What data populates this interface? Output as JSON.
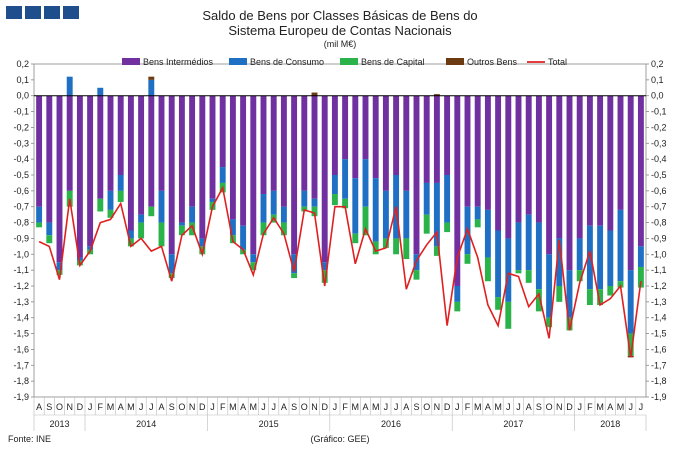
{
  "chart_data": {
    "type": "bar",
    "stacked": true,
    "title": "Saldo de Bens por Classes Básicas de Bens do",
    "subtitle": "Sistema Europeu de Contas Nacionais",
    "unit": "(mil M€)",
    "source": "Fonte: INE",
    "credit": "(Gráfico: GEE)",
    "ylim": [
      -1.9,
      0.2
    ],
    "yticks": [
      "0,2",
      "0,1",
      "0,0",
      "-0,1",
      "-0,2",
      "-0,3",
      "-0,4",
      "-0,5",
      "-0,6",
      "-0,7",
      "-0,8",
      "-0,9",
      "-1,0",
      "-1,1",
      "-1,2",
      "-1,3",
      "-1,4",
      "-1,5",
      "-1,6",
      "-1,7",
      "-1,8",
      "-1,9"
    ],
    "categories": [
      "A",
      "S",
      "O",
      "N",
      "D",
      "J",
      "F",
      "M",
      "A",
      "M",
      "J",
      "J",
      "A",
      "S",
      "O",
      "N",
      "D",
      "J",
      "F",
      "M",
      "A",
      "M",
      "J",
      "J",
      "A",
      "S",
      "O",
      "N",
      "D",
      "J",
      "F",
      "M",
      "A",
      "M",
      "J",
      "J",
      "A",
      "S",
      "O",
      "N",
      "D",
      "J",
      "F",
      "M",
      "A",
      "M",
      "J",
      "J",
      "A",
      "S",
      "O",
      "N",
      "D",
      "J",
      "F",
      "M",
      "A",
      "M",
      "J",
      "J"
    ],
    "years": [
      {
        "label": "2013",
        "start": 0,
        "end": 4
      },
      {
        "label": "2014",
        "start": 5,
        "end": 16
      },
      {
        "label": "2015",
        "start": 17,
        "end": 28
      },
      {
        "label": "2016",
        "start": 29,
        "end": 40
      },
      {
        "label": "2017",
        "start": 41,
        "end": 52
      },
      {
        "label": "2018",
        "start": 53,
        "end": 59
      }
    ],
    "legend_position": "top",
    "series": [
      {
        "name": "Bens Intermédios",
        "color": "#7030a0",
        "values": [
          -0.7,
          -0.8,
          -1.05,
          -0.6,
          -1.02,
          -0.95,
          -0.65,
          -0.6,
          -0.5,
          -0.85,
          -0.75,
          -0.7,
          -0.6,
          -1.0,
          -0.8,
          -0.7,
          -0.9,
          -0.65,
          -0.45,
          -0.78,
          -0.82,
          -1.0,
          -0.62,
          -0.6,
          -0.7,
          -1.0,
          -0.6,
          -0.65,
          -1.05,
          -0.5,
          -0.4,
          -0.52,
          -0.4,
          -0.52,
          -0.6,
          -0.5,
          -0.6,
          -1.0,
          -0.55,
          -0.55,
          -0.5,
          -1.2,
          -0.7,
          -0.7,
          -0.72,
          -0.85,
          -0.9,
          -0.8,
          -0.75,
          -0.8,
          -1.0,
          -0.9,
          -1.1,
          -0.9,
          -0.82,
          -0.82,
          -0.85,
          -0.72,
          -1.1,
          -0.95
        ]
      },
      {
        "name": "Bens de Consumo",
        "color": "#1f6fc5",
        "values": [
          -0.1,
          -0.08,
          -0.05,
          0.12,
          -0.02,
          -0.02,
          0.05,
          -0.12,
          -0.1,
          -0.05,
          -0.05,
          0.1,
          -0.2,
          -0.12,
          -0.02,
          -0.1,
          -0.05,
          -0.02,
          -0.1,
          -0.1,
          -0.15,
          -0.05,
          -0.18,
          -0.15,
          -0.1,
          -0.12,
          -0.1,
          -0.05,
          -0.05,
          -0.12,
          -0.25,
          -0.35,
          -0.3,
          -0.4,
          -0.3,
          -0.4,
          -0.3,
          -0.1,
          -0.2,
          -0.4,
          -0.3,
          -0.1,
          -0.3,
          -0.08,
          -0.3,
          -0.42,
          -0.4,
          -0.3,
          -0.35,
          -0.42,
          -0.4,
          -0.3,
          -0.3,
          -0.2,
          -0.4,
          -0.4,
          -0.35,
          -0.45,
          -0.4,
          -0.13
        ]
      },
      {
        "name": "Bens de Capital",
        "color": "#2bb34b",
        "values": [
          -0.03,
          -0.05,
          -0.03,
          -0.1,
          -0.03,
          -0.03,
          -0.08,
          -0.05,
          -0.07,
          -0.05,
          -0.1,
          -0.06,
          -0.15,
          -0.03,
          -0.06,
          -0.08,
          -0.05,
          -0.05,
          -0.06,
          -0.05,
          -0.03,
          -0.05,
          -0.08,
          -0.05,
          -0.08,
          -0.03,
          -0.03,
          -0.06,
          -0.08,
          -0.07,
          -0.06,
          -0.06,
          -0.18,
          -0.08,
          -0.06,
          -0.1,
          -0.13,
          -0.06,
          -0.12,
          -0.06,
          -0.06,
          -0.06,
          -0.06,
          -0.05,
          -0.15,
          -0.08,
          -0.17,
          -0.02,
          -0.08,
          -0.14,
          -0.06,
          -0.1,
          -0.08,
          -0.07,
          -0.1,
          -0.1,
          -0.06,
          -0.04,
          -0.14,
          -0.13
        ]
      },
      {
        "name": "Outros Bens",
        "color": "#6b3a10",
        "values": [
          0.0,
          0.0,
          0.0,
          0.0,
          0.0,
          0.0,
          0.0,
          0.0,
          0.0,
          0.0,
          0.0,
          0.02,
          0.0,
          0.0,
          0.0,
          0.0,
          0.0,
          0.0,
          0.0,
          0.0,
          0.0,
          0.0,
          0.0,
          0.0,
          0.0,
          0.0,
          0.0,
          0.02,
          0.0,
          0.0,
          0.0,
          0.0,
          0.0,
          0.0,
          0.0,
          0.0,
          0.0,
          0.0,
          0.0,
          0.01,
          0.0,
          0.0,
          0.0,
          0.0,
          0.0,
          0.0,
          0.0,
          0.0,
          0.0,
          0.0,
          0.0,
          0.0,
          0.0,
          0.0,
          0.0,
          0.0,
          0.0,
          0.0,
          -0.01,
          0.0
        ]
      },
      {
        "name": "Total",
        "color": "#e02020",
        "type": "line",
        "values": [
          -0.92,
          -0.95,
          -1.16,
          -0.65,
          -1.07,
          -0.98,
          -0.8,
          -0.78,
          -0.68,
          -0.95,
          -0.9,
          -0.98,
          -0.95,
          -1.17,
          -0.88,
          -0.82,
          -1.0,
          -0.7,
          -0.58,
          -0.92,
          -0.97,
          -1.13,
          -0.87,
          -0.77,
          -0.87,
          -1.11,
          -0.72,
          -0.74,
          -1.2,
          -0.7,
          -0.7,
          -1.06,
          -0.84,
          -0.98,
          -0.96,
          -0.7,
          -1.22,
          -1.04,
          -0.94,
          -0.86,
          -1.45,
          -1.02,
          -0.84,
          -1.02,
          -1.32,
          -1.45,
          -1.12,
          -1.14,
          -1.33,
          -1.25,
          -1.53,
          -0.91,
          -1.48,
          -1.18,
          -0.98,
          -1.32,
          -1.28,
          -1.2,
          -1.65,
          -1.17
        ]
      }
    ]
  }
}
